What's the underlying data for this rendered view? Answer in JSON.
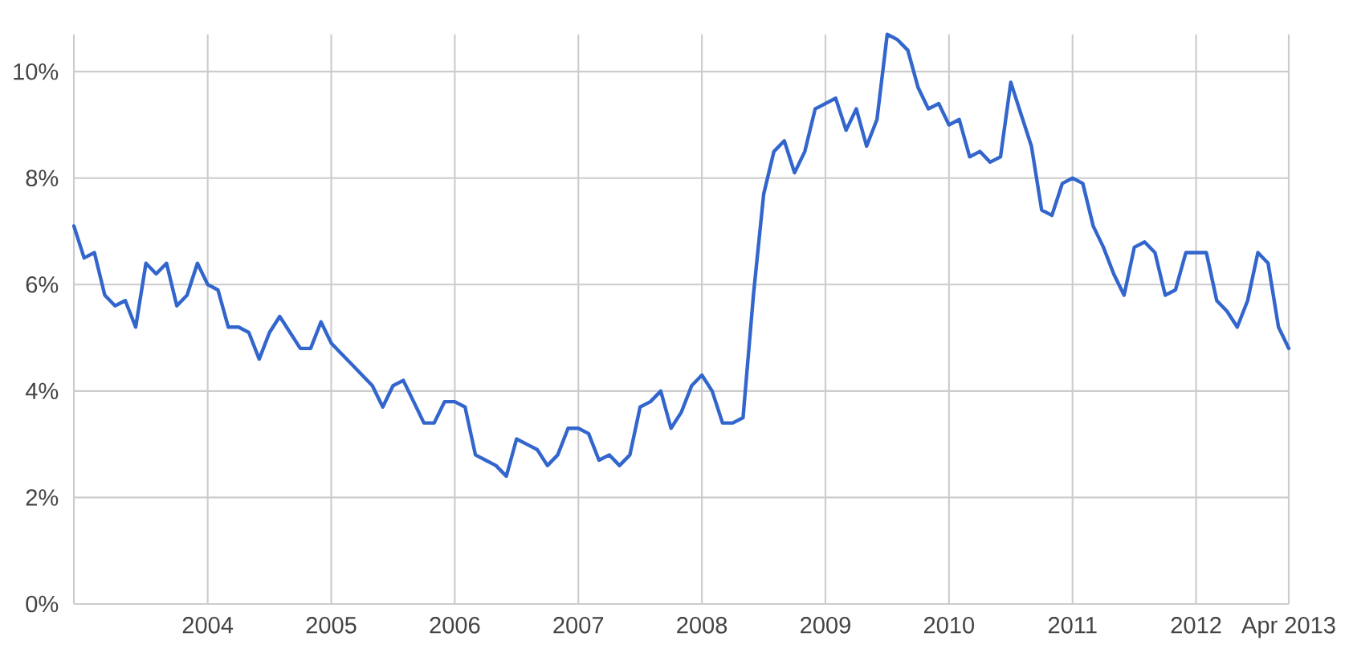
{
  "chart_data": {
    "type": "line",
    "x": [
      2002.917,
      2003.0,
      2003.083,
      2003.167,
      2003.25,
      2003.333,
      2003.417,
      2003.5,
      2003.583,
      2003.667,
      2003.75,
      2003.833,
      2003.917,
      2004.0,
      2004.083,
      2004.167,
      2004.25,
      2004.333,
      2004.417,
      2004.5,
      2004.583,
      2004.667,
      2004.75,
      2004.833,
      2004.917,
      2005.0,
      2005.083,
      2005.167,
      2005.25,
      2005.333,
      2005.417,
      2005.5,
      2005.583,
      2005.667,
      2005.75,
      2005.833,
      2005.917,
      2006.0,
      2006.083,
      2006.167,
      2006.25,
      2006.333,
      2006.417,
      2006.5,
      2006.583,
      2006.667,
      2006.75,
      2006.833,
      2006.917,
      2007.0,
      2007.083,
      2007.167,
      2007.25,
      2007.333,
      2007.417,
      2007.5,
      2007.583,
      2007.667,
      2007.75,
      2007.833,
      2007.917,
      2008.0,
      2008.083,
      2008.167,
      2008.25,
      2008.333,
      2008.417,
      2008.5,
      2008.583,
      2008.667,
      2008.75,
      2008.833,
      2008.917,
      2009.0,
      2009.083,
      2009.167,
      2009.25,
      2009.333,
      2009.417,
      2009.5,
      2009.583,
      2009.667,
      2009.75,
      2009.833,
      2009.917,
      2010.0,
      2010.083,
      2010.167,
      2010.25,
      2010.333,
      2010.417,
      2010.5,
      2010.583,
      2010.667,
      2010.75,
      2010.833,
      2010.917,
      2011.0,
      2011.083,
      2011.167,
      2011.25,
      2011.333,
      2011.417,
      2011.5,
      2011.583,
      2011.667,
      2011.75,
      2011.833,
      2011.917,
      2012.0,
      2012.083,
      2012.167,
      2012.25,
      2012.333,
      2012.417,
      2012.5,
      2012.583,
      2012.667,
      2012.75
    ],
    "values": [
      7.1,
      6.5,
      6.6,
      5.8,
      5.6,
      5.7,
      5.2,
      6.4,
      6.2,
      6.4,
      5.6,
      5.8,
      6.4,
      6.0,
      5.9,
      5.2,
      5.2,
      5.1,
      4.6,
      5.1,
      5.4,
      5.1,
      4.8,
      4.8,
      5.3,
      4.9,
      4.7,
      4.5,
      4.3,
      4.1,
      3.7,
      4.1,
      4.2,
      3.8,
      3.4,
      3.4,
      3.8,
      3.8,
      3.7,
      2.8,
      2.7,
      2.6,
      2.4,
      3.1,
      3.0,
      2.9,
      2.6,
      2.8,
      3.3,
      3.3,
      3.2,
      2.7,
      2.8,
      2.6,
      2.8,
      3.7,
      3.8,
      4.0,
      3.3,
      3.6,
      4.1,
      4.3,
      4.0,
      3.4,
      3.4,
      3.5,
      5.8,
      7.7,
      8.5,
      8.7,
      8.1,
      8.5,
      9.3,
      9.4,
      9.5,
      8.9,
      9.3,
      8.6,
      9.1,
      10.7,
      10.6,
      10.4,
      9.7,
      9.3,
      9.4,
      9.0,
      9.1,
      8.4,
      8.5,
      8.3,
      8.4,
      9.8,
      9.2,
      8.6,
      7.4,
      7.3,
      7.9,
      8.0,
      7.9,
      7.1,
      6.7,
      6.2,
      5.8,
      6.7,
      6.8,
      6.6,
      5.8,
      5.9,
      6.6,
      6.6,
      6.6,
      5.7,
      5.5,
      5.2,
      5.7,
      6.6,
      6.4,
      5.2,
      4.8
    ],
    "color": "#3366cc",
    "xlim": [
      2002.917,
      2012.75
    ],
    "ylim": [
      0,
      10.7
    ],
    "xticks": [
      2004,
      2005,
      2006,
      2007,
      2008,
      2009,
      2010,
      2011,
      2012,
      {
        "value": 2012.75,
        "label": "Apr 2013"
      }
    ],
    "yticks": [
      {
        "value": 0,
        "label": "0%"
      },
      {
        "value": 2,
        "label": "2%"
      },
      {
        "value": 4,
        "label": "4%"
      },
      {
        "value": 6,
        "label": "6%"
      },
      {
        "value": 8,
        "label": "8%"
      },
      {
        "value": 10,
        "label": "10%"
      }
    ],
    "grid": true
  }
}
